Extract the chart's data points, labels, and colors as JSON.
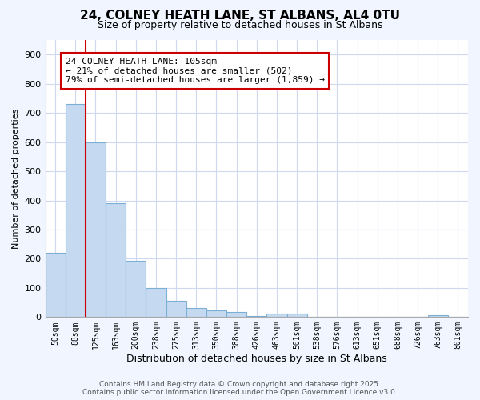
{
  "title1": "24, COLNEY HEATH LANE, ST ALBANS, AL4 0TU",
  "title2": "Size of property relative to detached houses in St Albans",
  "xlabel": "Distribution of detached houses by size in St Albans",
  "ylabel": "Number of detached properties",
  "categories": [
    "50sqm",
    "88sqm",
    "125sqm",
    "163sqm",
    "200sqm",
    "238sqm",
    "275sqm",
    "313sqm",
    "350sqm",
    "388sqm",
    "426sqm",
    "463sqm",
    "501sqm",
    "538sqm",
    "576sqm",
    "613sqm",
    "651sqm",
    "688sqm",
    "726sqm",
    "763sqm",
    "801sqm"
  ],
  "values": [
    220,
    730,
    600,
    390,
    193,
    100,
    57,
    32,
    22,
    18,
    3,
    12,
    12,
    0,
    0,
    0,
    0,
    0,
    0,
    7,
    0
  ],
  "bar_color": "#c5d9f0",
  "bar_edge_color": "#7bafd4",
  "vline_color": "#cc0000",
  "vline_x_index": 1.5,
  "annotation_text": "24 COLNEY HEATH LANE: 105sqm\n← 21% of detached houses are smaller (502)\n79% of semi-detached houses are larger (1,859) →",
  "annotation_box_edgecolor": "#cc0000",
  "plot_bg_color": "#ffffff",
  "fig_bg_color": "#f0f5ff",
  "grid_color": "#d0d8ef",
  "footer_text": "Contains HM Land Registry data © Crown copyright and database right 2025.\nContains public sector information licensed under the Open Government Licence v3.0.",
  "ylim": [
    0,
    950
  ],
  "yticks": [
    0,
    100,
    200,
    300,
    400,
    500,
    600,
    700,
    800,
    900
  ],
  "title1_fontsize": 11,
  "title2_fontsize": 9,
  "ylabel_fontsize": 8,
  "xlabel_fontsize": 9,
  "tick_fontsize": 7,
  "footer_fontsize": 6.5,
  "ann_fontsize": 8
}
